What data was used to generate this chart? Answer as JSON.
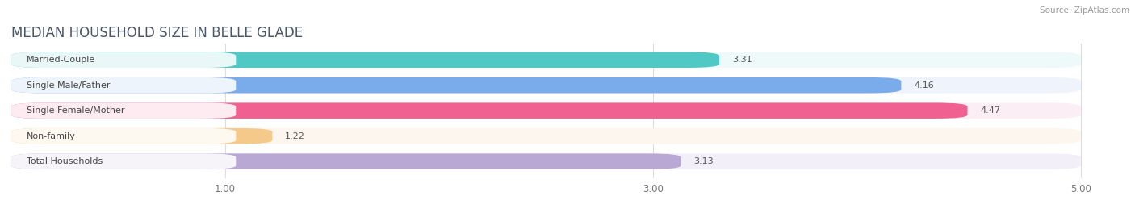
{
  "title": "MEDIAN HOUSEHOLD SIZE IN BELLE GLADE",
  "source": "Source: ZipAtlas.com",
  "categories": [
    "Married-Couple",
    "Single Male/Father",
    "Single Female/Mother",
    "Non-family",
    "Total Households"
  ],
  "values": [
    3.31,
    4.16,
    4.47,
    1.22,
    3.13
  ],
  "bar_colors": [
    "#50c8c6",
    "#7aabea",
    "#f06090",
    "#f5c98a",
    "#b9a8d4"
  ],
  "bar_background_colors": [
    "#eef9f9",
    "#eef3fc",
    "#fceef5",
    "#fdf6ee",
    "#f3eff9"
  ],
  "value_labels": [
    "3.31",
    "4.16",
    "4.47",
    "1.22",
    "3.13"
  ],
  "xlim_display": [
    0,
    5.2
  ],
  "xstart": 0,
  "xend": 5.0,
  "xticks": [
    1.0,
    3.0,
    5.0
  ],
  "xtick_labels": [
    "1.00",
    "3.00",
    "5.00"
  ],
  "title_fontsize": 12,
  "label_fontsize": 8,
  "value_fontsize": 8,
  "bg_color": "#ffffff",
  "grid_color": "#dddddd",
  "title_color": "#4a5568",
  "source_color": "#999999",
  "label_text_color": "#444444",
  "value_text_color_inside": "#ffffff",
  "value_text_color_outside": "#555555"
}
